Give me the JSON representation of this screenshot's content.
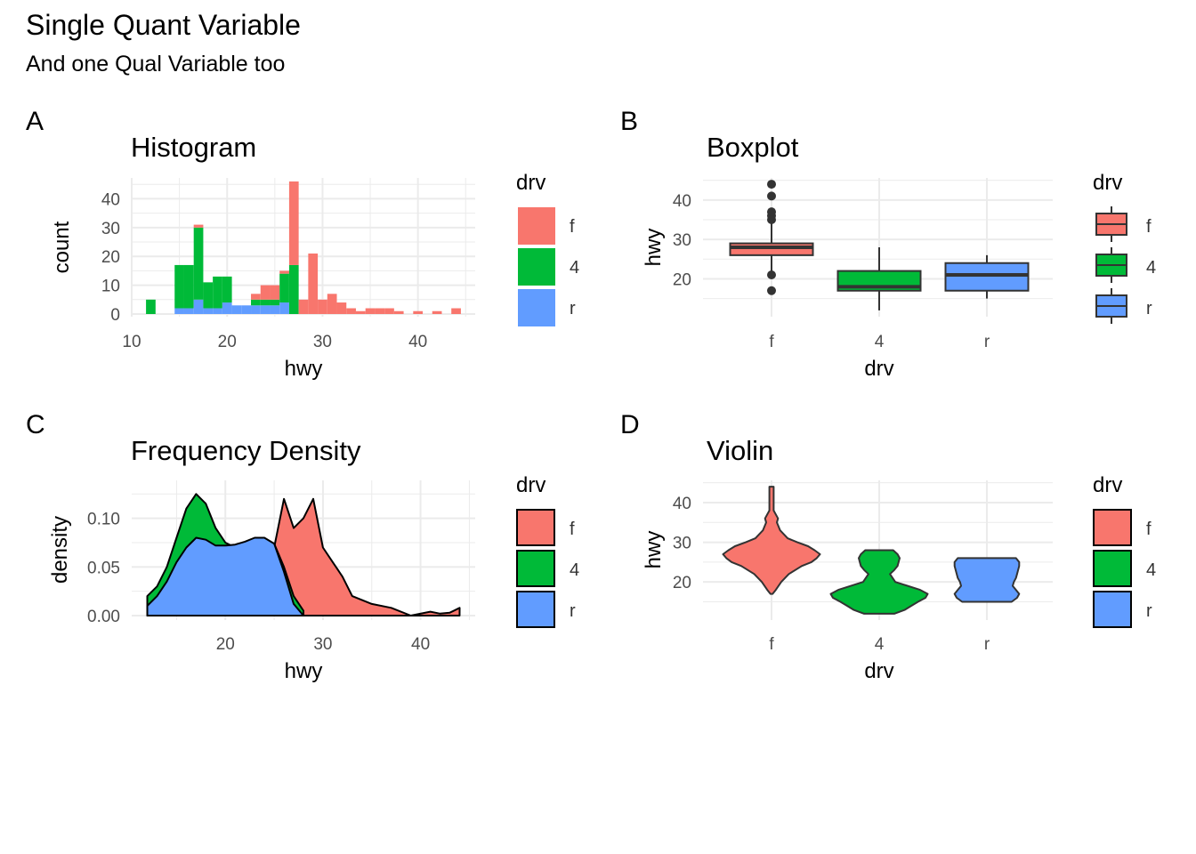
{
  "title": "Single Quant Variable",
  "subtitle": "And one Qual Variable too",
  "colors": {
    "f": "#F8766D",
    "4": "#00BA38",
    "r": "#619CFF",
    "grid": "#EBEBEB",
    "outline": "#333333"
  },
  "chart_data": [
    {
      "tag": "A",
      "type": "bar",
      "title": "Histogram",
      "xlabel": "hwy",
      "ylabel": "count",
      "xlim": [
        10,
        46
      ],
      "ylim": [
        0,
        46
      ],
      "xticks": [
        10,
        20,
        30,
        40
      ],
      "yticks": [
        0,
        10,
        20,
        30,
        40
      ],
      "stacked": true,
      "bin_width": 1,
      "legend": {
        "title": "drv",
        "position": "right",
        "entries": [
          "f",
          "4",
          "r"
        ]
      },
      "x": [
        12,
        14,
        15,
        16,
        17,
        18,
        19,
        20,
        21,
        22,
        23,
        24,
        25,
        26,
        27,
        28,
        29,
        30,
        31,
        32,
        33,
        34,
        35,
        36,
        37,
        38,
        40,
        42,
        44
      ],
      "series": [
        {
          "name": "r",
          "values": [
            0,
            0,
            2,
            2,
            5,
            2,
            2,
            4,
            3,
            3,
            3,
            3,
            3,
            4,
            0,
            0,
            0,
            0,
            0,
            0,
            0,
            0,
            0,
            0,
            0,
            0,
            0,
            0,
            0
          ]
        },
        {
          "name": "4",
          "values": [
            5,
            0,
            15,
            15,
            25,
            9,
            11,
            9,
            0,
            0,
            2,
            2,
            2,
            10,
            17,
            0,
            0,
            0,
            0,
            0,
            0,
            0,
            0,
            0,
            0,
            0,
            0,
            0,
            0
          ]
        },
        {
          "name": "f",
          "values": [
            0,
            0,
            0,
            0,
            1,
            0,
            0,
            0,
            0,
            0,
            2,
            5,
            5,
            1,
            29,
            5,
            21,
            5,
            7,
            4,
            2,
            1,
            2,
            2,
            2,
            1,
            1,
            1,
            2
          ]
        }
      ]
    },
    {
      "tag": "B",
      "type": "boxplot",
      "title": "Boxplot",
      "xlabel": "drv",
      "ylabel": "hwy",
      "categories": [
        "f",
        "4",
        "r"
      ],
      "ylim": [
        10.4,
        45.6
      ],
      "yticks": [
        20,
        30,
        40
      ],
      "legend": {
        "title": "drv",
        "position": "right",
        "entries": [
          "f",
          "4",
          "r"
        ]
      },
      "boxes": [
        {
          "name": "f",
          "min": 21,
          "q1": 26,
          "median": 28,
          "q3": 29,
          "max": 34,
          "outliers": [
            17,
            21,
            35,
            36,
            37,
            41,
            44
          ]
        },
        {
          "name": "4",
          "min": 12,
          "q1": 17,
          "median": 18,
          "q3": 22,
          "max": 28,
          "outliers": []
        },
        {
          "name": "r",
          "min": 15,
          "q1": 17,
          "median": 21,
          "q3": 24,
          "max": 26,
          "outliers": []
        }
      ]
    },
    {
      "tag": "C",
      "type": "area",
      "title": "Frequency Density",
      "xlabel": "hwy",
      "ylabel": "density",
      "xlim": [
        10.4,
        45.6
      ],
      "ylim": [
        0,
        0.139
      ],
      "xticks": [
        20,
        30,
        40
      ],
      "yticks": [
        0,
        0.05,
        0.1
      ],
      "ytick_labels": [
        "0.00",
        "0.05",
        "0.10"
      ],
      "legend": {
        "title": "drv",
        "position": "right",
        "entries": [
          "f",
          "4",
          "r"
        ]
      },
      "series": [
        {
          "name": "f",
          "x": [
            12,
            14,
            16,
            18,
            20,
            22,
            24,
            25,
            26,
            27,
            28,
            29,
            30,
            31,
            32,
            33,
            35,
            37,
            39,
            41,
            42,
            43,
            44
          ],
          "y": [
            0,
            0.001,
            0.002,
            0.004,
            0.008,
            0.012,
            0.04,
            0.07,
            0.12,
            0.09,
            0.1,
            0.12,
            0.07,
            0.055,
            0.04,
            0.02,
            0.012,
            0.008,
            0,
            0.004,
            0.002,
            0.003,
            0.008
          ]
        },
        {
          "name": "4",
          "x": [
            12,
            13,
            14,
            15,
            16,
            17,
            18,
            19,
            20,
            21,
            22,
            23,
            24,
            25,
            26,
            27,
            28
          ],
          "y": [
            0.02,
            0.03,
            0.05,
            0.08,
            0.11,
            0.125,
            0.115,
            0.09,
            0.075,
            0.07,
            0.07,
            0.075,
            0.078,
            0.074,
            0.05,
            0.02,
            0.005
          ]
        },
        {
          "name": "r",
          "x": [
            12,
            13,
            14,
            15,
            16,
            17,
            18,
            19,
            20,
            21,
            22,
            23,
            24,
            25,
            26,
            27,
            28
          ],
          "y": [
            0.01,
            0.02,
            0.035,
            0.055,
            0.07,
            0.08,
            0.078,
            0.072,
            0.072,
            0.073,
            0.076,
            0.08,
            0.08,
            0.074,
            0.045,
            0.012,
            0
          ]
        }
      ]
    },
    {
      "tag": "D",
      "type": "violin",
      "title": "Violin",
      "xlabel": "drv",
      "ylabel": "hwy",
      "categories": [
        "f",
        "4",
        "r"
      ],
      "ylim": [
        10.4,
        45.6
      ],
      "yticks": [
        20,
        30,
        40
      ],
      "legend": {
        "title": "drv",
        "position": "right",
        "entries": [
          "f",
          "4",
          "r"
        ]
      },
      "violins": [
        {
          "name": "f",
          "y": [
            17,
            18,
            20,
            22,
            24,
            25,
            26,
            27,
            28,
            29,
            30,
            31,
            33,
            35,
            36,
            38,
            41,
            44
          ],
          "half_width": [
            0.01,
            0.04,
            0.09,
            0.16,
            0.28,
            0.37,
            0.42,
            0.45,
            0.4,
            0.34,
            0.24,
            0.15,
            0.08,
            0.05,
            0.06,
            0.02,
            0.02,
            0.02
          ]
        },
        {
          "name": "4",
          "y": [
            12,
            13,
            14,
            15,
            16,
            17,
            18,
            20,
            22,
            23,
            24,
            25,
            26,
            27,
            28
          ],
          "half_width": [
            0.14,
            0.24,
            0.3,
            0.36,
            0.43,
            0.45,
            0.38,
            0.15,
            0.1,
            0.14,
            0.17,
            0.18,
            0.19,
            0.17,
            0.13
          ]
        },
        {
          "name": "r",
          "y": [
            15,
            16,
            17,
            18,
            19,
            20,
            21,
            22,
            23,
            24,
            25,
            26
          ],
          "half_width": [
            0.23,
            0.28,
            0.3,
            0.27,
            0.24,
            0.25,
            0.27,
            0.28,
            0.29,
            0.3,
            0.3,
            0.27
          ]
        }
      ]
    }
  ]
}
